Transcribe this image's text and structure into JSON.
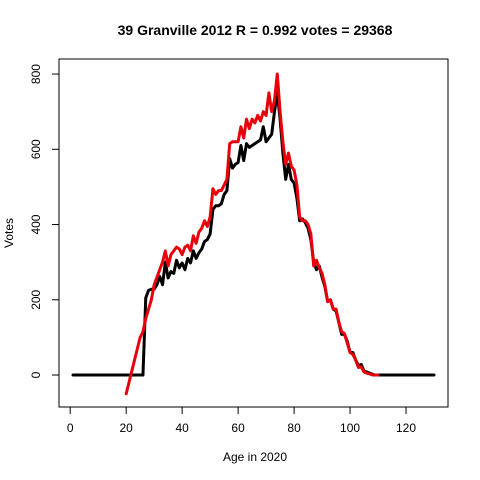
{
  "chart_data": {
    "type": "line",
    "title": "39 Granville 2012 R = 0.992 votes = 29368",
    "xlabel": "Age in 2020",
    "ylabel": "Votes",
    "xlim": [
      -4,
      135
    ],
    "ylim": [
      -85,
      840
    ],
    "x_ticks": [
      0,
      20,
      40,
      60,
      80,
      100,
      120
    ],
    "y_ticks": [
      0,
      200,
      400,
      600,
      800
    ],
    "grid": false,
    "colors": {
      "series_black": "#000000",
      "series_red": "#e8000b"
    },
    "series": [
      {
        "color": "#000000",
        "points": [
          [
            1,
            0
          ],
          [
            26,
            0
          ],
          [
            27,
            205
          ],
          [
            28,
            225
          ],
          [
            29,
            228
          ],
          [
            30,
            228
          ],
          [
            31,
            240
          ],
          [
            32,
            262
          ],
          [
            33,
            240
          ],
          [
            34,
            300
          ],
          [
            35,
            258
          ],
          [
            36,
            275
          ],
          [
            37,
            270
          ],
          [
            38,
            305
          ],
          [
            39,
            285
          ],
          [
            40,
            298
          ],
          [
            41,
            280
          ],
          [
            42,
            310
          ],
          [
            43,
            298
          ],
          [
            44,
            330
          ],
          [
            45,
            310
          ],
          [
            46,
            325
          ],
          [
            47,
            335
          ],
          [
            48,
            355
          ],
          [
            49,
            360
          ],
          [
            50,
            375
          ],
          [
            51,
            440
          ],
          [
            52,
            450
          ],
          [
            53,
            450
          ],
          [
            54,
            455
          ],
          [
            55,
            480
          ],
          [
            56,
            490
          ],
          [
            57,
            575
          ],
          [
            58,
            550
          ],
          [
            59,
            560
          ],
          [
            60,
            565
          ],
          [
            61,
            610
          ],
          [
            62,
            570
          ],
          [
            63,
            615
          ],
          [
            64,
            605
          ],
          [
            65,
            610
          ],
          [
            66,
            615
          ],
          [
            67,
            620
          ],
          [
            68,
            625
          ],
          [
            69,
            660
          ],
          [
            70,
            620
          ],
          [
            71,
            630
          ],
          [
            72,
            640
          ],
          [
            73,
            700
          ],
          [
            74,
            750
          ],
          [
            75,
            680
          ],
          [
            76,
            590
          ],
          [
            77,
            520
          ],
          [
            78,
            560
          ],
          [
            79,
            520
          ],
          [
            80,
            510
          ],
          [
            81,
            470
          ],
          [
            82,
            410
          ],
          [
            83,
            415
          ],
          [
            84,
            405
          ],
          [
            85,
            390
          ],
          [
            86,
            360
          ],
          [
            87,
            300
          ],
          [
            88,
            280
          ],
          [
            89,
            290
          ],
          [
            90,
            260
          ],
          [
            91,
            235
          ],
          [
            92,
            195
          ],
          [
            93,
            200
          ],
          [
            94,
            175
          ],
          [
            95,
            170
          ],
          [
            96,
            140
          ],
          [
            97,
            108
          ],
          [
            98,
            108
          ],
          [
            99,
            90
          ],
          [
            100,
            60
          ],
          [
            101,
            60
          ],
          [
            102,
            40
          ],
          [
            103,
            25
          ],
          [
            104,
            28
          ],
          [
            105,
            10
          ],
          [
            106,
            8
          ],
          [
            107,
            5
          ],
          [
            108,
            2
          ],
          [
            109,
            0
          ],
          [
            130,
            0
          ]
        ]
      },
      {
        "color": "#e8000b",
        "points": [
          [
            20,
            -50
          ],
          [
            21,
            -20
          ],
          [
            22,
            10
          ],
          [
            23,
            40
          ],
          [
            24,
            70
          ],
          [
            25,
            100
          ],
          [
            26,
            115
          ],
          [
            27,
            150
          ],
          [
            28,
            175
          ],
          [
            29,
            200
          ],
          [
            30,
            240
          ],
          [
            31,
            260
          ],
          [
            32,
            280
          ],
          [
            33,
            300
          ],
          [
            34,
            330
          ],
          [
            35,
            290
          ],
          [
            36,
            320
          ],
          [
            37,
            330
          ],
          [
            38,
            340
          ],
          [
            39,
            335
          ],
          [
            40,
            320
          ],
          [
            41,
            340
          ],
          [
            42,
            345
          ],
          [
            43,
            330
          ],
          [
            44,
            370
          ],
          [
            45,
            350
          ],
          [
            46,
            380
          ],
          [
            47,
            390
          ],
          [
            48,
            410
          ],
          [
            49,
            395
          ],
          [
            50,
            420
          ],
          [
            51,
            495
          ],
          [
            52,
            480
          ],
          [
            53,
            490
          ],
          [
            54,
            490
          ],
          [
            55,
            505
          ],
          [
            56,
            520
          ],
          [
            57,
            615
          ],
          [
            58,
            620
          ],
          [
            59,
            620
          ],
          [
            60,
            620
          ],
          [
            61,
            660
          ],
          [
            62,
            630
          ],
          [
            63,
            680
          ],
          [
            64,
            655
          ],
          [
            65,
            680
          ],
          [
            66,
            670
          ],
          [
            67,
            690
          ],
          [
            68,
            675
          ],
          [
            69,
            700
          ],
          [
            70,
            690
          ],
          [
            71,
            750
          ],
          [
            72,
            700
          ],
          [
            73,
            730
          ],
          [
            74,
            800
          ],
          [
            75,
            700
          ],
          [
            76,
            620
          ],
          [
            77,
            560
          ],
          [
            78,
            590
          ],
          [
            79,
            555
          ],
          [
            80,
            545
          ],
          [
            81,
            505
          ],
          [
            82,
            420
          ],
          [
            83,
            410
          ],
          [
            84,
            410
          ],
          [
            85,
            400
          ],
          [
            86,
            375
          ],
          [
            87,
            290
          ],
          [
            88,
            305
          ],
          [
            89,
            285
          ],
          [
            90,
            270
          ],
          [
            91,
            240
          ],
          [
            92,
            195
          ],
          [
            93,
            200
          ],
          [
            94,
            175
          ],
          [
            95,
            175
          ],
          [
            96,
            140
          ],
          [
            97,
            115
          ],
          [
            98,
            110
          ],
          [
            99,
            85
          ],
          [
            100,
            60
          ],
          [
            101,
            55
          ],
          [
            102,
            40
          ],
          [
            103,
            20
          ],
          [
            104,
            22
          ],
          [
            105,
            8
          ],
          [
            106,
            5
          ],
          [
            107,
            3
          ],
          [
            108,
            0
          ],
          [
            110,
            0
          ]
        ]
      }
    ]
  }
}
